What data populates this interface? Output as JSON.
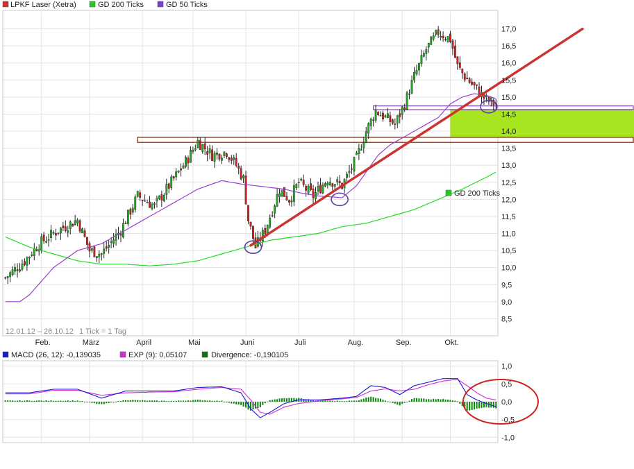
{
  "chart_data": [
    {
      "type": "candlestick",
      "title": "LPKF Laser (Xetra)",
      "legend": [
        {
          "label": "LPKF Laser (Xetra)",
          "color": "#d03030"
        },
        {
          "label": "GD 200 Ticks",
          "color": "#22cc22"
        },
        {
          "label": "GD 50 Ticks",
          "color": "#7a3fd0"
        }
      ],
      "date_range_label": "12.01.12 – 26.10.12",
      "tick_label": "1 Tick = 1 Tag",
      "ylim": [
        8.0,
        17.5
      ],
      "yticks": [
        "8,5",
        "9,0",
        "9,5",
        "10,0",
        "10,5",
        "11,0",
        "11,5",
        "12,0",
        "12,5",
        "13,0",
        "13,5",
        "14,0",
        "14,5",
        "15,0",
        "15,5",
        "16,0",
        "16,5",
        "17,0"
      ],
      "ytick_values": [
        8.5,
        9.0,
        9.5,
        10.0,
        10.5,
        11.0,
        11.5,
        12.0,
        12.5,
        13.0,
        13.5,
        14.0,
        14.5,
        15.0,
        15.5,
        16.0,
        16.5,
        17.0
      ],
      "months": [
        "Feb.",
        "März",
        "April",
        "Mai",
        "Juni",
        "Juli",
        "Aug.",
        "Sep.",
        "Okt."
      ],
      "n_days": 205,
      "month_start_index": [
        15,
        35,
        57,
        78,
        100,
        122,
        145,
        165,
        185
      ],
      "price_anchors": {
        "index": [
          0,
          8,
          14,
          22,
          30,
          35,
          40,
          48,
          55,
          62,
          68,
          75,
          80,
          86,
          92,
          96,
          99,
          101,
          104,
          108,
          114,
          118,
          122,
          128,
          134,
          140,
          146,
          150,
          154,
          158,
          162,
          166,
          170,
          175,
          180,
          185,
          188,
          191,
          195,
          200,
          204
        ],
        "close": [
          9.7,
          10.2,
          10.7,
          11.1,
          11.4,
          10.5,
          10.4,
          11.1,
          12.1,
          11.8,
          12.4,
          13.1,
          13.7,
          13.3,
          13.4,
          13.0,
          12.6,
          11.4,
          10.6,
          11.1,
          12.3,
          12.0,
          12.5,
          12.1,
          12.6,
          12.4,
          13.2,
          14.0,
          14.6,
          14.4,
          14.2,
          14.8,
          15.6,
          16.4,
          16.9,
          16.7,
          15.9,
          15.6,
          15.3,
          14.9,
          14.8
        ]
      },
      "gd50_anchors": {
        "index": [
          0,
          6,
          10,
          20,
          30,
          40,
          50,
          60,
          70,
          80,
          90,
          98,
          104,
          110,
          116,
          122,
          130,
          140,
          146,
          150,
          155,
          160,
          170,
          180,
          185,
          190,
          195,
          200,
          204
        ],
        "values": [
          9.0,
          9.0,
          9.2,
          10.0,
          10.5,
          10.7,
          11.1,
          11.5,
          11.9,
          12.3,
          12.55,
          12.45,
          12.4,
          12.35,
          12.3,
          12.2,
          12.1,
          12.05,
          12.4,
          12.8,
          13.3,
          13.6,
          14.0,
          14.4,
          14.8,
          15.0,
          15.1,
          15.05,
          14.95
        ]
      },
      "gd200_anchors": {
        "index": [
          0,
          10,
          20,
          30,
          40,
          50,
          60,
          70,
          80,
          90,
          100,
          110,
          120,
          130,
          140,
          150,
          160,
          170,
          180,
          190,
          200,
          204
        ],
        "values": [
          10.9,
          10.6,
          10.4,
          10.2,
          10.1,
          10.1,
          10.05,
          10.1,
          10.2,
          10.4,
          10.6,
          10.8,
          10.9,
          11.0,
          11.2,
          11.3,
          11.5,
          11.7,
          12.0,
          12.3,
          12.65,
          12.8
        ],
        "label": "GD 200 Ticks"
      },
      "trendline": {
        "x": [
          102,
          240
        ],
        "y": [
          10.65,
          17.0
        ],
        "color": "#cc3333"
      },
      "resistance_zone": {
        "xfrom": 55,
        "yhi": 13.82,
        "ylo": 13.67,
        "color": "#a05030"
      },
      "support_box": {
        "xfrom": 153,
        "yhi": 14.74,
        "ylo": 14.63,
        "color": "#8040b0"
      },
      "highlight_zone": {
        "xfrom": 185,
        "yhi": 14.65,
        "ylo": 13.82,
        "color": "#a6e51f"
      },
      "circles": [
        {
          "x": 103,
          "y": 10.6
        },
        {
          "x": 139,
          "y": 12.0
        },
        {
          "x": 201,
          "y": 14.72
        }
      ]
    },
    {
      "type": "macd",
      "title": "MACD (26, 12)",
      "legend": [
        {
          "label": "MACD (26, 12): -0,139035",
          "color": "#1a1ad0"
        },
        {
          "label": "EXP (9): 0,05107",
          "color": "#d030d0"
        },
        {
          "label": "Divergence: -0,190105",
          "color": "#107010"
        }
      ],
      "ylim": [
        -1.15,
        1.15
      ],
      "yticks": [
        "1,0",
        "0,5",
        "0,0",
        "-0,5",
        "-1,0"
      ],
      "ytick_values": [
        1.0,
        0.5,
        0.0,
        -0.5,
        -1.0
      ],
      "macd_anchors": {
        "index": [
          0,
          10,
          20,
          30,
          40,
          50,
          60,
          70,
          80,
          90,
          98,
          102,
          106,
          110,
          116,
          122,
          130,
          140,
          146,
          152,
          158,
          164,
          170,
          176,
          182,
          188,
          192,
          196,
          200,
          204
        ],
        "values": [
          0.25,
          0.25,
          0.35,
          0.35,
          0.1,
          0.3,
          0.3,
          0.3,
          0.4,
          0.42,
          0.25,
          -0.2,
          -0.45,
          -0.3,
          -0.05,
          0.05,
          0.05,
          0.1,
          0.15,
          0.45,
          0.4,
          0.2,
          0.45,
          0.55,
          0.65,
          0.65,
          0.2,
          0.05,
          -0.05,
          -0.14
        ]
      },
      "exp_anchors": {
        "index": [
          0,
          10,
          20,
          30,
          40,
          50,
          60,
          70,
          80,
          90,
          98,
          102,
          106,
          110,
          116,
          122,
          130,
          140,
          146,
          152,
          158,
          164,
          170,
          176,
          182,
          188,
          192,
          196,
          200,
          204
        ],
        "values": [
          0.22,
          0.22,
          0.32,
          0.32,
          0.18,
          0.25,
          0.27,
          0.28,
          0.35,
          0.4,
          0.35,
          0.05,
          -0.3,
          -0.35,
          -0.15,
          -0.05,
          0.02,
          0.08,
          0.12,
          0.3,
          0.36,
          0.3,
          0.35,
          0.48,
          0.58,
          0.63,
          0.45,
          0.25,
          0.1,
          0.05
        ]
      },
      "circle": {
        "x": 199,
        "y": 0.0
      }
    }
  ]
}
